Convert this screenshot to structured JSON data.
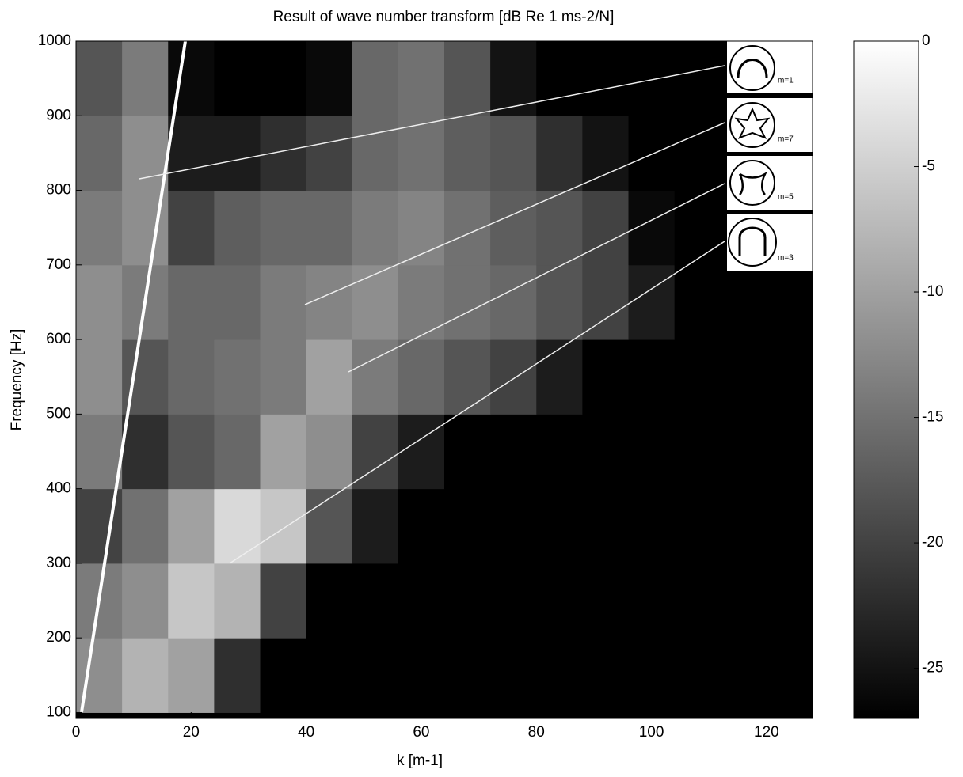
{
  "chart_data": {
    "type": "heatmap",
    "title": "Result of wave number transform [dB Re 1 ms-2/N]",
    "x_label": "k [m-1]",
    "y_label": "Frequency [Hz]",
    "xlim": [
      0,
      128
    ],
    "ylim": [
      92,
      1000
    ],
    "xticks": [
      0,
      20,
      40,
      60,
      80,
      100,
      120
    ],
    "yticks": [
      100,
      200,
      300,
      400,
      500,
      600,
      700,
      800,
      900,
      1000
    ],
    "x_edges": [
      0,
      8,
      16,
      24,
      32,
      40,
      48,
      56,
      64,
      72,
      80,
      88,
      96,
      104,
      112,
      120,
      128
    ],
    "y_edges": [
      100,
      200,
      300,
      400,
      500,
      600,
      700,
      800,
      900,
      1000
    ],
    "z": [
      [
        -12,
        -8,
        -10,
        -22,
        -27,
        -27,
        -27,
        -27,
        -27,
        -27,
        -27,
        -27,
        -27,
        -27,
        -27,
        -27
      ],
      [
        -14,
        -12,
        -6,
        -8,
        -20,
        -27,
        -27,
        -27,
        -27,
        -27,
        -27,
        -27,
        -27,
        -27,
        -27,
        -27
      ],
      [
        -20,
        -15,
        -10,
        -4,
        -6,
        -18,
        -24,
        -27,
        -27,
        -27,
        -27,
        -27,
        -27,
        -27,
        -27,
        -27
      ],
      [
        -14,
        -22,
        -18,
        -16,
        -10,
        -12,
        -20,
        -24,
        -27,
        -27,
        -27,
        -27,
        -27,
        -27,
        -27,
        -27
      ],
      [
        -12,
        -18,
        -16,
        -15,
        -14,
        -10,
        -14,
        -16,
        -18,
        -20,
        -24,
        -27,
        -27,
        -27,
        -27,
        -27
      ],
      [
        -12,
        -14,
        -16,
        -16,
        -14,
        -13,
        -12,
        -14,
        -15,
        -16,
        -18,
        -20,
        -24,
        -27,
        -27,
        -27
      ],
      [
        -14,
        -12,
        -20,
        -17,
        -16,
        -16,
        -14,
        -13,
        -15,
        -17,
        -18,
        -20,
        -26,
        -27,
        -27,
        -27
      ],
      [
        -16,
        -12,
        -24,
        -24,
        -22,
        -20,
        -16,
        -15,
        -17,
        -18,
        -22,
        -25,
        -27,
        -27,
        -27,
        -27
      ],
      [
        -18,
        -14,
        -26,
        -27,
        -27,
        -26,
        -16,
        -15,
        -18,
        -25,
        -27,
        -27,
        -27,
        -27,
        -27,
        -27
      ]
    ],
    "colormap": "gray",
    "clim": [
      -27,
      0
    ],
    "cticks": [
      0,
      -5,
      -10,
      -15,
      -20,
      -25
    ],
    "annotations": [
      "m=1",
      "m=7",
      "m=5",
      "m=3"
    ]
  }
}
